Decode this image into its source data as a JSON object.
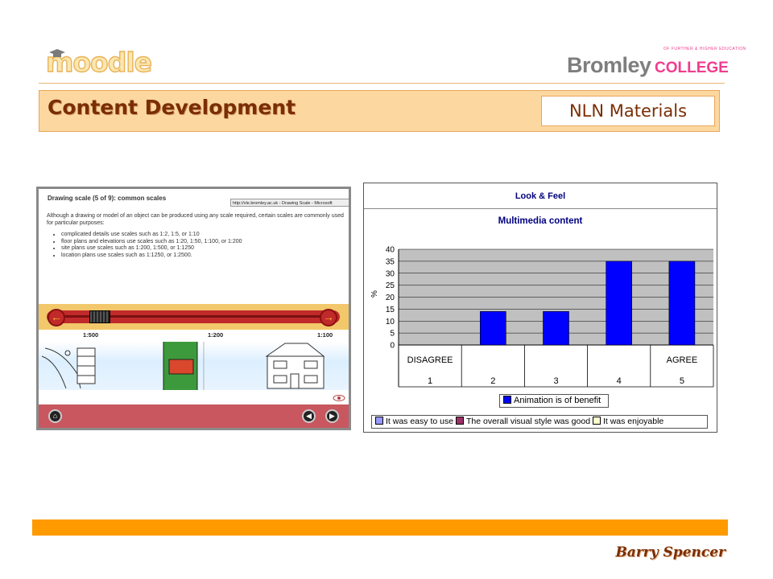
{
  "header": {
    "moodle_logo": "moodle",
    "bromley_logo_main": "Bromley",
    "bromley_logo_college": "COLLEGE",
    "bromley_logo_tagline": "OF FURTHER & HIGHER EDUCATION"
  },
  "title_band": {
    "title": "Content Development",
    "badge": "NLN Materials"
  },
  "screenshot": {
    "title": "Drawing scale (5 of 9): common scales",
    "url": "http://vle.bromley.ac.uk - Drawing Scale - Microsoft",
    "intro": "Although a drawing or model of an object can be produced using any scale required, certain scales are commonly used for particular purposes:",
    "bullets": [
      "complicated details use scales such as 1:2, 1:5, or 1:10",
      "floor plans and elevations use scales such as 1:20, 1:50, 1:100, or 1:200",
      "site plans use scales such as 1:200, 1:500, or 1:1250",
      "location plans use scales such as 1:1250, or 1:2500."
    ],
    "scale_labels": [
      "1:500",
      "1:200",
      "1:100"
    ],
    "slider_value": 0.1
  },
  "chart_data": {
    "type": "bar",
    "header": "Look & Feel",
    "title": "Multimedia content",
    "ylabel": "%",
    "ylim": [
      0,
      40
    ],
    "yticks": [
      0,
      5,
      10,
      15,
      20,
      25,
      30,
      35,
      40
    ],
    "categories": [
      "1",
      "2",
      "3",
      "4",
      "5"
    ],
    "category_sublabels": [
      "DISAGREE",
      "",
      "",
      "",
      "AGREE"
    ],
    "series": [
      {
        "name": "Animation is of benefit",
        "values": [
          0,
          14,
          14,
          35,
          35
        ],
        "color": "#0000ff"
      }
    ],
    "other_legend": [
      {
        "name": "It was easy to use",
        "color": "#9999ff"
      },
      {
        "name": "The overall visual style was good",
        "color": "#993366"
      },
      {
        "name": "It was enjoyable",
        "color": "#ffffcc"
      }
    ],
    "plot_background": "#c0c0c0",
    "grid": true
  },
  "footer": {
    "author": "Barry Spencer",
    "bar_color": "#ff9a00"
  }
}
